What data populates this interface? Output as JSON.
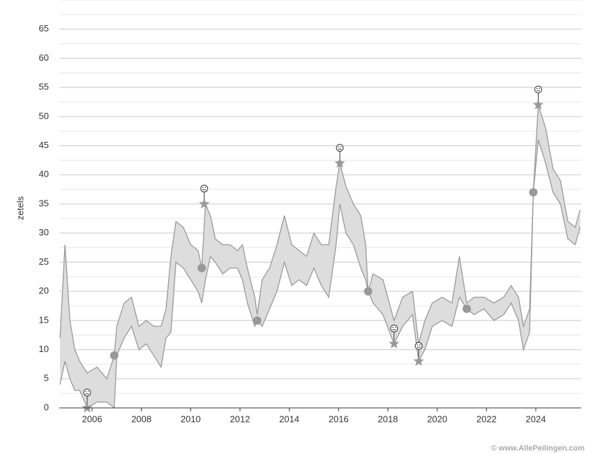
{
  "chart_data": {
    "type": "band",
    "y_label": "zetels",
    "credit": "© www.AllePeilingen.com",
    "xlim": [
      2004.67,
      2025.84
    ],
    "xticks": [
      2006,
      2008,
      2010,
      2012,
      2014,
      2016,
      2018,
      2020,
      2022,
      2024
    ],
    "ylim": [
      0,
      70
    ],
    "yticks": [
      0,
      5,
      10,
      15,
      20,
      25,
      30,
      35,
      40,
      45,
      50,
      55,
      60,
      65
    ],
    "minor_yticks": [
      2.5,
      7.5,
      12.5,
      17.5,
      22.5,
      27.5,
      32.5,
      37.5,
      42.5,
      47.5,
      52.5,
      57.5,
      62.5,
      67.5,
      70
    ],
    "grid": true,
    "band": {
      "color": "#dddddd",
      "line_color": "#999999",
      "x": [
        2004.7,
        2004.9,
        2005.1,
        2005.3,
        2005.5,
        2005.8,
        2006.2,
        2006.6,
        2006.9,
        2007.0,
        2007.3,
        2007.6,
        2007.9,
        2008.2,
        2008.5,
        2008.8,
        2009.0,
        2009.2,
        2009.4,
        2009.7,
        2010.0,
        2010.3,
        2010.45,
        2010.6,
        2010.8,
        2011.0,
        2011.3,
        2011.6,
        2011.9,
        2012.1,
        2012.3,
        2012.6,
        2012.7,
        2012.9,
        2013.2,
        2013.5,
        2013.8,
        2014.1,
        2014.4,
        2014.7,
        2015.0,
        2015.3,
        2015.6,
        2015.9,
        2016.05,
        2016.3,
        2016.6,
        2016.9,
        2017.1,
        2017.2,
        2017.4,
        2017.8,
        2018.25,
        2018.6,
        2019.0,
        2019.25,
        2019.5,
        2019.8,
        2020.2,
        2020.6,
        2020.9,
        2021.2,
        2021.5,
        2021.9,
        2022.3,
        2022.7,
        2023.0,
        2023.3,
        2023.5,
        2023.75,
        2023.9,
        2024.1,
        2024.4,
        2024.7,
        2025.0,
        2025.3,
        2025.6,
        2025.8
      ],
      "low": [
        4,
        8,
        5,
        3,
        3,
        0,
        1,
        1,
        0,
        9,
        12,
        14,
        10,
        11,
        9,
        7,
        12,
        13,
        25,
        24,
        22,
        20,
        18,
        22,
        26,
        25,
        23,
        24,
        24,
        22,
        18,
        14,
        15,
        14,
        17,
        20,
        25,
        21,
        22,
        21,
        24,
        21,
        19,
        28,
        35,
        30,
        28,
        24,
        22,
        20,
        18,
        16,
        11,
        14,
        16,
        8,
        10,
        14,
        15,
        14,
        19,
        17,
        16,
        17,
        15,
        16,
        18,
        15,
        10,
        13,
        37,
        46,
        42,
        37,
        35,
        29,
        28,
        31
      ],
      "high": [
        12,
        28,
        15,
        10,
        8,
        6,
        7,
        5,
        9,
        14,
        18,
        19,
        14,
        15,
        14,
        14,
        17,
        26,
        32,
        31,
        28,
        27,
        24,
        35,
        33,
        29,
        28,
        28,
        27,
        28,
        24,
        19,
        16,
        22,
        24,
        28,
        33,
        28,
        27,
        26,
        30,
        28,
        28,
        38,
        42,
        38,
        35,
        33,
        28,
        20,
        23,
        22,
        15,
        19,
        20,
        11,
        15,
        18,
        19,
        18,
        26,
        18,
        19,
        19,
        18,
        19,
        21,
        19,
        14,
        17,
        37,
        52,
        48,
        41,
        39,
        32,
        31,
        34
      ]
    },
    "elections": {
      "color": "#999999",
      "x": [
        2006.9,
        2010.45,
        2012.7,
        2017.2,
        2021.2,
        2023.9
      ],
      "values": [
        9,
        24,
        15,
        20,
        17,
        37
      ]
    },
    "extremes": {
      "color": "#999999",
      "x": [
        2005.8,
        2010.55,
        2016.05,
        2018.25,
        2019.25,
        2024.1
      ],
      "values": [
        0,
        35,
        42,
        11,
        8,
        52
      ]
    }
  }
}
